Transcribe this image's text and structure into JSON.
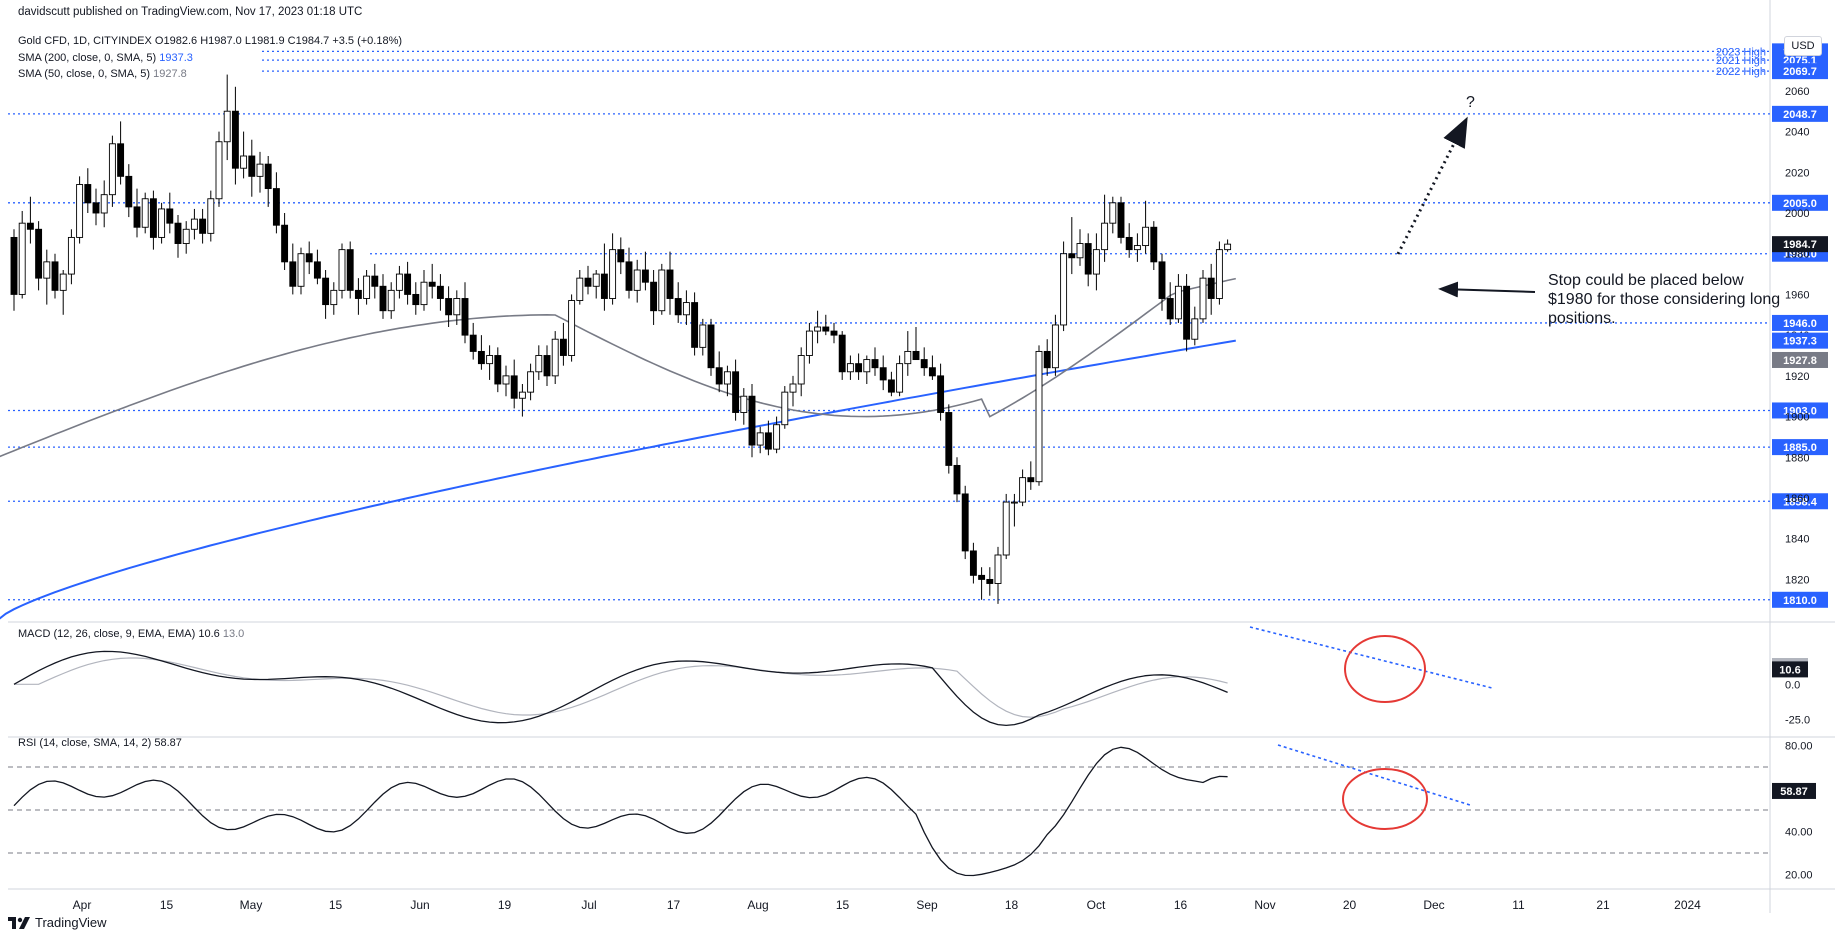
{
  "header": {
    "publisher": "davidscutt published on TradingView.com, Nov 17, 2023 01:18 UTC",
    "symbol": "Gold CFD, 1D, CITYINDEX",
    "open": "O1982.6",
    "high": "H1987.0",
    "low": "L1981.9",
    "close": "C1984.7",
    "change": "+3.5 (+0.18%)",
    "sma200": {
      "label": "SMA (200, close, 0, SMA, 5)",
      "value": "1937.3"
    },
    "sma50": {
      "label": "SMA (50, close, 0, SMA, 5)",
      "value": "1927.8"
    },
    "currency": "USD"
  },
  "annotations": {
    "note": "Stop could be placed below $1980 for those considering long positions.",
    "question": "?"
  },
  "footer": {
    "brand": "TradingView"
  },
  "colors": {
    "up": "#ffffff",
    "down": "#000000",
    "sma200": "#2962ff",
    "sma50": "#787b86",
    "level": "#2962ff",
    "circle": "#e53935"
  },
  "chart_data": [
    {
      "type": "candlestick",
      "title": "Gold CFD, 1D, CITYINDEX",
      "x_ticks": [
        "Apr",
        "15",
        "May",
        "15",
        "Jun",
        "19",
        "Jul",
        "17",
        "Aug",
        "15",
        "Sep",
        "18",
        "Oct",
        "16",
        "Nov",
        "20",
        "Dec",
        "11",
        "21",
        "2024"
      ],
      "y_ticks": [
        1820,
        1840,
        1860,
        1880,
        1900,
        1920,
        1940,
        1960,
        1980,
        2000,
        2020,
        2040,
        2060
      ],
      "ylim": [
        1804,
        2084
      ],
      "levels": [
        {
          "label": "2023 High",
          "value": "2079.4"
        },
        {
          "label": "2021 High",
          "value": "2075.1"
        },
        {
          "label": "2022 High",
          "value": "2069.7"
        },
        {
          "label": "",
          "value": "2048.7"
        },
        {
          "label": "",
          "value": "2005.0"
        },
        {
          "label": "",
          "value": "1980.0"
        },
        {
          "label": "",
          "value": "1946.0"
        },
        {
          "label": "",
          "value": "1903.0"
        },
        {
          "label": "",
          "value": "1885.0"
        },
        {
          "label": "",
          "value": "1858.4"
        },
        {
          "label": "",
          "value": "1810.0"
        }
      ],
      "price_tags": {
        "last": "1984.7",
        "sma200": "1937.3",
        "sma50": "1927.8"
      },
      "candles": [
        [
          1988,
          1992,
          1952,
          1960
        ],
        [
          1960,
          2001,
          1958,
          1995
        ],
        [
          1995,
          2008,
          1985,
          1992
        ],
        [
          1992,
          1996,
          1962,
          1968
        ],
        [
          1968,
          1982,
          1955,
          1976
        ],
        [
          1976,
          1980,
          1958,
          1962
        ],
        [
          1962,
          1972,
          1950,
          1970
        ],
        [
          1970,
          1992,
          1965,
          1988
        ],
        [
          1988,
          2018,
          1985,
          2014
        ],
        [
          2014,
          2022,
          2000,
          2005
        ],
        [
          2005,
          2012,
          1994,
          2000
        ],
        [
          2000,
          2016,
          1993,
          2009
        ],
        [
          2009,
          2038,
          2003,
          2034
        ],
        [
          2034,
          2045,
          2014,
          2018
        ],
        [
          2018,
          2024,
          1998,
          2003
        ],
        [
          2003,
          2012,
          1988,
          1993
        ],
        [
          1993,
          2010,
          1990,
          2007
        ],
        [
          2007,
          2011,
          1982,
          1988
        ],
        [
          1988,
          2005,
          1985,
          2002
        ],
        [
          2002,
          2010,
          1990,
          1995
        ],
        [
          1995,
          1999,
          1978,
          1985
        ],
        [
          1985,
          1996,
          1980,
          1992
        ],
        [
          1992,
          2002,
          1987,
          1997
        ],
        [
          1997,
          2002,
          1985,
          1990
        ],
        [
          1990,
          2011,
          1986,
          2007
        ],
        [
          2007,
          2040,
          2003,
          2035
        ],
        [
          2035,
          2068,
          2026,
          2050
        ],
        [
          2050,
          2062,
          2014,
          2022
        ],
        [
          2022,
          2040,
          2017,
          2028
        ],
        [
          2028,
          2036,
          2008,
          2018
        ],
        [
          2018,
          2030,
          2010,
          2024
        ],
        [
          2024,
          2028,
          2003,
          2012
        ],
        [
          2012,
          2020,
          1990,
          1994
        ],
        [
          1994,
          2000,
          1972,
          1976
        ],
        [
          1976,
          1985,
          1960,
          1964
        ],
        [
          1964,
          1983,
          1960,
          1980
        ],
        [
          1980,
          1986,
          1970,
          1976
        ],
        [
          1976,
          1982,
          1965,
          1968
        ],
        [
          1968,
          1972,
          1948,
          1955
        ],
        [
          1955,
          1966,
          1950,
          1962
        ],
        [
          1962,
          1985,
          1958,
          1982
        ],
        [
          1982,
          1986,
          1958,
          1962
        ],
        [
          1962,
          1968,
          1950,
          1958
        ],
        [
          1958,
          1972,
          1955,
          1969
        ],
        [
          1969,
          1975,
          1958,
          1964
        ],
        [
          1964,
          1970,
          1948,
          1952
        ],
        [
          1952,
          1966,
          1948,
          1962
        ],
        [
          1962,
          1974,
          1958,
          1970
        ],
        [
          1970,
          1976,
          1955,
          1960
        ],
        [
          1960,
          1966,
          1950,
          1955
        ],
        [
          1955,
          1972,
          1952,
          1966
        ],
        [
          1966,
          1975,
          1958,
          1964
        ],
        [
          1964,
          1970,
          1952,
          1958
        ],
        [
          1958,
          1964,
          1944,
          1950
        ],
        [
          1950,
          1962,
          1945,
          1958
        ],
        [
          1958,
          1966,
          1936,
          1940
        ],
        [
          1940,
          1946,
          1928,
          1932
        ],
        [
          1932,
          1940,
          1923,
          1926
        ],
        [
          1926,
          1935,
          1918,
          1930
        ],
        [
          1930,
          1934,
          1912,
          1916
        ],
        [
          1916,
          1925,
          1910,
          1920
        ],
        [
          1920,
          1928,
          1904,
          1909
        ],
        [
          1909,
          1916,
          1900,
          1912
        ],
        [
          1912,
          1926,
          1908,
          1922
        ],
        [
          1922,
          1935,
          1918,
          1930
        ],
        [
          1930,
          1935,
          1915,
          1920
        ],
        [
          1920,
          1942,
          1916,
          1938
        ],
        [
          1938,
          1946,
          1925,
          1930
        ],
        [
          1930,
          1960,
          1927,
          1957
        ],
        [
          1957,
          1972,
          1955,
          1968
        ],
        [
          1968,
          1974,
          1960,
          1964
        ],
        [
          1964,
          1972,
          1958,
          1970
        ],
        [
          1970,
          1985,
          1952,
          1958
        ],
        [
          1958,
          1990,
          1955,
          1982
        ],
        [
          1982,
          1988,
          1970,
          1976
        ],
        [
          1976,
          1983,
          1958,
          1962
        ],
        [
          1962,
          1977,
          1956,
          1972
        ],
        [
          1972,
          1981,
          1962,
          1966
        ],
        [
          1966,
          1972,
          1945,
          1952
        ],
        [
          1952,
          1975,
          1950,
          1972
        ],
        [
          1972,
          1981,
          1950,
          1958
        ],
        [
          1958,
          1966,
          1946,
          1950
        ],
        [
          1950,
          1962,
          1945,
          1956
        ],
        [
          1956,
          1961,
          1930,
          1934
        ],
        [
          1934,
          1948,
          1930,
          1945
        ],
        [
          1945,
          1948,
          1920,
          1924
        ],
        [
          1924,
          1932,
          1912,
          1916
        ],
        [
          1916,
          1925,
          1910,
          1922
        ],
        [
          1922,
          1928,
          1898,
          1902
        ],
        [
          1902,
          1914,
          1896,
          1910
        ],
        [
          1910,
          1916,
          1880,
          1886
        ],
        [
          1886,
          1895,
          1882,
          1892
        ],
        [
          1892,
          1898,
          1881,
          1884
        ],
        [
          1884,
          1900,
          1882,
          1896
        ],
        [
          1896,
          1915,
          1894,
          1912
        ],
        [
          1912,
          1920,
          1905,
          1916
        ],
        [
          1916,
          1934,
          1910,
          1930
        ],
        [
          1930,
          1946,
          1926,
          1942
        ],
        [
          1942,
          1952,
          1936,
          1944
        ],
        [
          1944,
          1950,
          1940,
          1942
        ],
        [
          1942,
          1946,
          1936,
          1940
        ],
        [
          1940,
          1942,
          1918,
          1922
        ],
        [
          1922,
          1930,
          1918,
          1926
        ],
        [
          1926,
          1931,
          1918,
          1922
        ],
        [
          1922,
          1930,
          1916,
          1928
        ],
        [
          1928,
          1934,
          1920,
          1924
        ],
        [
          1924,
          1930,
          1913,
          1918
        ],
        [
          1918,
          1922,
          1910,
          1912
        ],
        [
          1912,
          1930,
          1910,
          1926
        ],
        [
          1926,
          1942,
          1920,
          1932
        ],
        [
          1932,
          1944,
          1928,
          1928
        ],
        [
          1928,
          1934,
          1920,
          1924
        ],
        [
          1924,
          1930,
          1918,
          1920
        ],
        [
          1920,
          1926,
          1898,
          1902
        ],
        [
          1902,
          1906,
          1872,
          1876
        ],
        [
          1876,
          1880,
          1858,
          1862
        ],
        [
          1862,
          1866,
          1830,
          1834
        ],
        [
          1834,
          1838,
          1818,
          1822
        ],
        [
          1822,
          1826,
          1810,
          1820
        ],
        [
          1820,
          1826,
          1812,
          1818
        ],
        [
          1818,
          1836,
          1808,
          1832
        ],
        [
          1832,
          1862,
          1830,
          1858
        ],
        [
          1858,
          1862,
          1846,
          1858
        ],
        [
          1858,
          1874,
          1856,
          1870
        ],
        [
          1870,
          1878,
          1864,
          1868
        ],
        [
          1868,
          1935,
          1866,
          1932
        ],
        [
          1932,
          1938,
          1920,
          1924
        ],
        [
          1924,
          1950,
          1920,
          1945
        ],
        [
          1945,
          1986,
          1942,
          1980
        ],
        [
          1980,
          1998,
          1970,
          1978
        ],
        [
          1978,
          1992,
          1974,
          1985
        ],
        [
          1985,
          1990,
          1964,
          1970
        ],
        [
          1970,
          1990,
          1962,
          1982
        ],
        [
          1982,
          2009,
          1976,
          1995
        ],
        [
          1995,
          2008,
          1990,
          2005
        ],
        [
          2005,
          2008,
          1985,
          1988
        ],
        [
          1988,
          1995,
          1978,
          1982
        ],
        [
          1982,
          1990,
          1976,
          1984
        ],
        [
          1984,
          2006,
          1980,
          1993
        ],
        [
          1993,
          1996,
          1972,
          1976
        ],
        [
          1976,
          1980,
          1952,
          1958
        ],
        [
          1958,
          1966,
          1945,
          1948
        ],
        [
          1948,
          1970,
          1946,
          1964
        ],
        [
          1964,
          1970,
          1932,
          1938
        ],
        [
          1938,
          1954,
          1935,
          1948
        ],
        [
          1948,
          1972,
          1946,
          1968
        ],
        [
          1968,
          1975,
          1950,
          1958
        ],
        [
          1958,
          1986,
          1955,
          1982
        ],
        [
          1982,
          1987,
          1981,
          1984.7
        ]
      ],
      "sma200_range": [
        1800,
        1937.3
      ],
      "sma50_range": [
        1880,
        1927.8
      ]
    },
    {
      "type": "line",
      "title": "MACD (12, 26, close, 9, EMA, EMA)",
      "values": {
        "macd": "10.6",
        "signal": "13.0"
      },
      "y_ticks": [
        13.0,
        0.0,
        -25.0
      ],
      "ylim": [
        -36,
        40
      ]
    },
    {
      "type": "line",
      "title": "RSI (14, close, SMA, 14, 2)",
      "values": {
        "rsi": "58.87"
      },
      "y_ticks": [
        80.0,
        40.0,
        20.0
      ],
      "levels": [
        70,
        50,
        30
      ],
      "ylim": [
        16,
        84
      ]
    }
  ]
}
